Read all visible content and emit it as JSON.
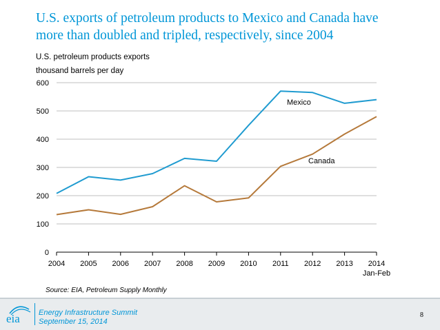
{
  "slide": {
    "title_line1": "U.S. exports of petroleum products to Mexico and Canada have",
    "title_line2": "more than doubled and tripled, respectively, since 2004",
    "source": "Source:  EIA, Petroleum Supply Monthly",
    "event_name": "Energy Infrastructure Summit",
    "event_date": "September 15, 2014",
    "page_number": "8",
    "logo_text": "eia",
    "accent_color": "#0096d7"
  },
  "chart_data": {
    "type": "line",
    "title": "U.S. petroleum products exports",
    "ylabel": "thousand barrels per day",
    "xlabel": "",
    "categories": [
      "2004",
      "2005",
      "2006",
      "2007",
      "2008",
      "2009",
      "2010",
      "2011",
      "2012",
      "2013",
      "2014"
    ],
    "category_sublabels": {
      "2014": "Jan-Feb"
    },
    "ylim": [
      0,
      600
    ],
    "yticks": [
      0,
      100,
      200,
      300,
      400,
      500,
      600
    ],
    "grid": true,
    "legend": "inline labels",
    "series": [
      {
        "name": "Mexico",
        "color": "#1f9bd0",
        "values": [
          208,
          267,
          255,
          278,
          332,
          322,
          449,
          570,
          565,
          527,
          540
        ]
      },
      {
        "name": "Canada",
        "color": "#b5793a",
        "values": [
          133,
          150,
          134,
          161,
          235,
          178,
          192,
          304,
          347,
          418,
          480
        ]
      }
    ]
  }
}
